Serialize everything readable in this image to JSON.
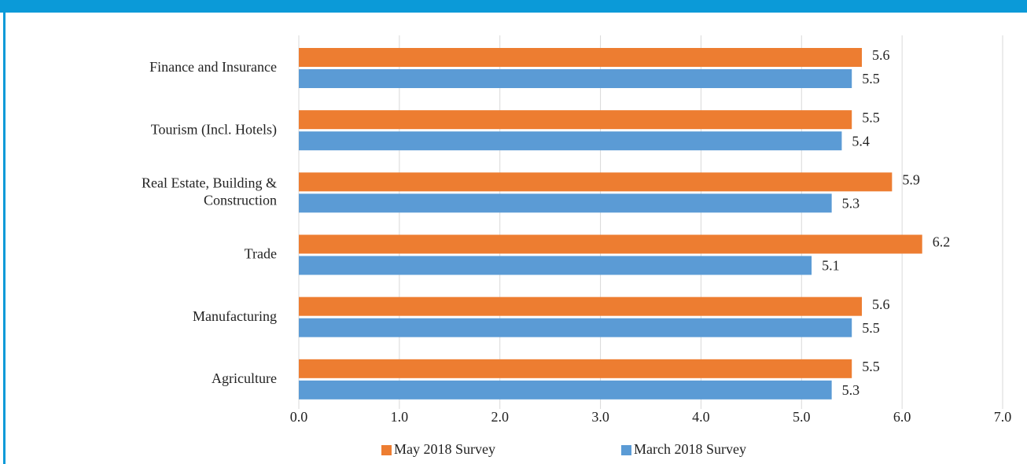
{
  "chart_data": {
    "type": "bar",
    "orientation": "horizontal",
    "categories": [
      "Finance and Insurance",
      "Tourism (Incl. Hotels)",
      "Real Estate, Building &\nConstruction",
      "Trade",
      "Manufacturing",
      "Agriculture"
    ],
    "series": [
      {
        "name": "May 2018 Survey",
        "color": "#ed7d31",
        "values": [
          5.6,
          5.5,
          5.9,
          6.2,
          5.6,
          5.5
        ]
      },
      {
        "name": "March 2018 Survey",
        "color": "#5b9bd5",
        "values": [
          5.5,
          5.4,
          5.3,
          5.1,
          5.5,
          5.3
        ]
      }
    ],
    "xlim": [
      0,
      7
    ],
    "xticks": [
      {
        "value": 0,
        "label": "0.0"
      },
      {
        "value": 1,
        "label": "1.0"
      },
      {
        "value": 2,
        "label": "2.0"
      },
      {
        "value": 3,
        "label": "3.0"
      },
      {
        "value": 4,
        "label": "4.0"
      },
      {
        "value": 5,
        "label": "5.0"
      },
      {
        "value": 6,
        "label": "6.0"
      },
      {
        "value": 7,
        "label": "7.0"
      }
    ],
    "grid": true,
    "legend": "bottom"
  }
}
